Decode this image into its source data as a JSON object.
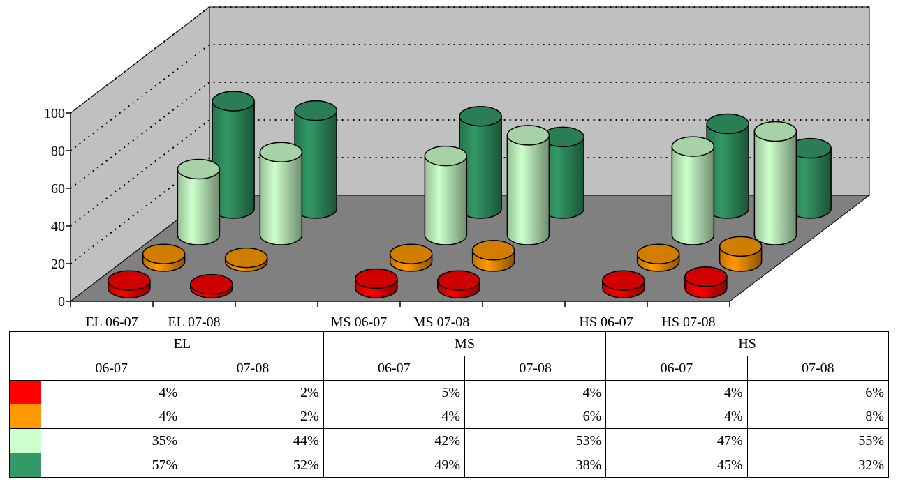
{
  "chart_data": {
    "type": "bar",
    "categories": [
      "EL 06-07",
      "EL 07-08",
      "",
      "MS 06-07",
      "MS 07-08",
      "",
      "HS 06-07",
      "HS 07-08"
    ],
    "y_ticks": [
      "0",
      "20",
      "40",
      "60",
      "80",
      "100"
    ],
    "ylim": [
      0,
      100
    ],
    "grid": true,
    "series": [
      {
        "color": "#ff0000",
        "values": [
          4,
          2,
          null,
          5,
          4,
          null,
          4,
          6
        ]
      },
      {
        "color": "#ff9900",
        "values": [
          4,
          2,
          null,
          4,
          6,
          null,
          4,
          8
        ]
      },
      {
        "color": "#ccffcc",
        "values": [
          35,
          44,
          null,
          42,
          53,
          null,
          47,
          55
        ]
      },
      {
        "color": "#339966",
        "values": [
          57,
          52,
          null,
          49,
          38,
          null,
          45,
          32
        ]
      }
    ]
  },
  "table": {
    "groups": [
      "EL",
      "MS",
      "HS"
    ],
    "periods": [
      "06-07",
      "07-08",
      "06-07",
      "07-08",
      "06-07",
      "07-08"
    ],
    "rows": [
      {
        "color": "#ff0000",
        "cells": [
          "4%",
          "2%",
          "5%",
          "4%",
          "4%",
          "6%"
        ]
      },
      {
        "color": "#ff9900",
        "cells": [
          "4%",
          "2%",
          "4%",
          "6%",
          "4%",
          "8%"
        ]
      },
      {
        "color": "#ccffcc",
        "cells": [
          "35%",
          "44%",
          "42%",
          "53%",
          "47%",
          "55%"
        ]
      },
      {
        "color": "#339966",
        "cells": [
          "57%",
          "52%",
          "49%",
          "38%",
          "45%",
          "32%"
        ]
      }
    ]
  }
}
